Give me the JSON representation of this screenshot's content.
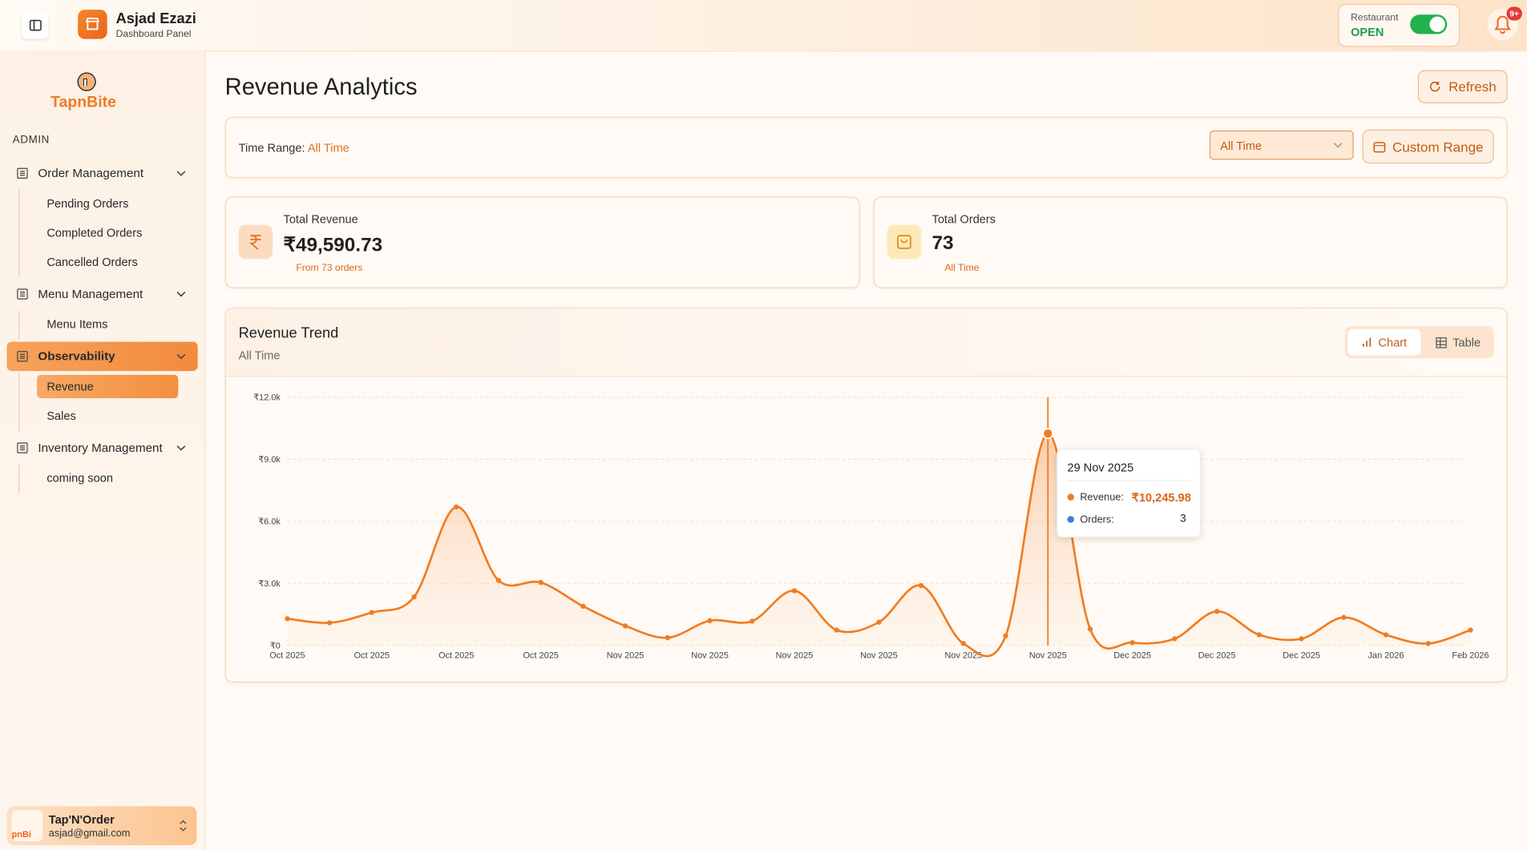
{
  "header": {
    "user_name": "Asjad Ezazi",
    "subtitle": "Dashboard Panel",
    "status_label": "Restaurant",
    "status": "OPEN",
    "notifications": "9+"
  },
  "sidebar": {
    "brand": "TapnBite",
    "section": "ADMIN",
    "nav": [
      {
        "label": "Order Management",
        "children": [
          "Pending Orders",
          "Completed Orders",
          "Cancelled Orders"
        ]
      },
      {
        "label": "Menu Management",
        "children": [
          "Menu Items"
        ]
      },
      {
        "label": "Observability",
        "children": [
          "Revenue",
          "Sales"
        ]
      },
      {
        "label": "Inventory Management",
        "children": [
          "coming soon"
        ]
      }
    ],
    "user": {
      "name": "Tap'N'Order",
      "email": "asjad@gmail.com"
    }
  },
  "page": {
    "title": "Revenue Analytics",
    "refresh": "Refresh",
    "time_range_label": "Time Range:",
    "time_range": "All Time",
    "dropdown": "All Time",
    "custom_range": "Custom Range",
    "stats": [
      {
        "label": "Total Revenue",
        "value": "₹49,590.73",
        "note": "From 73 orders"
      },
      {
        "label": "Total Orders",
        "value": 73,
        "note": "All Time"
      }
    ],
    "trend_title": "Revenue Trend",
    "trend_subtitle": "All Time",
    "views": [
      "Chart",
      "Table"
    ],
    "tooltip": {
      "title": "29 Nov 2025",
      "rows": [
        {
          "label": "Revenue:",
          "value": "₹10,245.98"
        },
        {
          "label": "Orders:",
          "value": 3
        }
      ]
    }
  },
  "chart_data": {
    "type": "line",
    "color": "#f07c22",
    "categories": [
      "Oct 2025",
      null,
      "Oct 2025",
      null,
      "Oct 2025",
      null,
      "Oct 2025",
      null,
      "Nov 2025",
      null,
      "Nov 2025",
      null,
      "Nov 2025",
      null,
      "Nov 2025",
      null,
      "Nov 2025",
      null,
      "Nov 2025",
      null,
      "Dec 2025",
      null,
      "Dec 2025",
      null,
      "Dec 2025",
      null,
      "Jan 2026",
      null,
      "Feb 2026"
    ],
    "values": [
      1300,
      1100,
      1600,
      2350,
      6700,
      3150,
      3050,
      1900,
      950,
      380,
      1200,
      1180,
      2650,
      750,
      1130,
      2900,
      100,
      470,
      10245.98,
      800,
      140,
      330,
      1650,
      520,
      330,
      1360,
      520,
      100,
      750
    ],
    "ylim": [
      0,
      12000
    ],
    "yticks": [
      {
        "value": 0,
        "label": "₹0"
      },
      {
        "value": 3000,
        "label": "₹3.0k"
      },
      {
        "value": 6000,
        "label": "₹6.0k"
      },
      {
        "value": 9000,
        "label": "₹9.0k"
      },
      {
        "value": 12000,
        "label": "₹12.0k"
      }
    ],
    "grid": true
  }
}
